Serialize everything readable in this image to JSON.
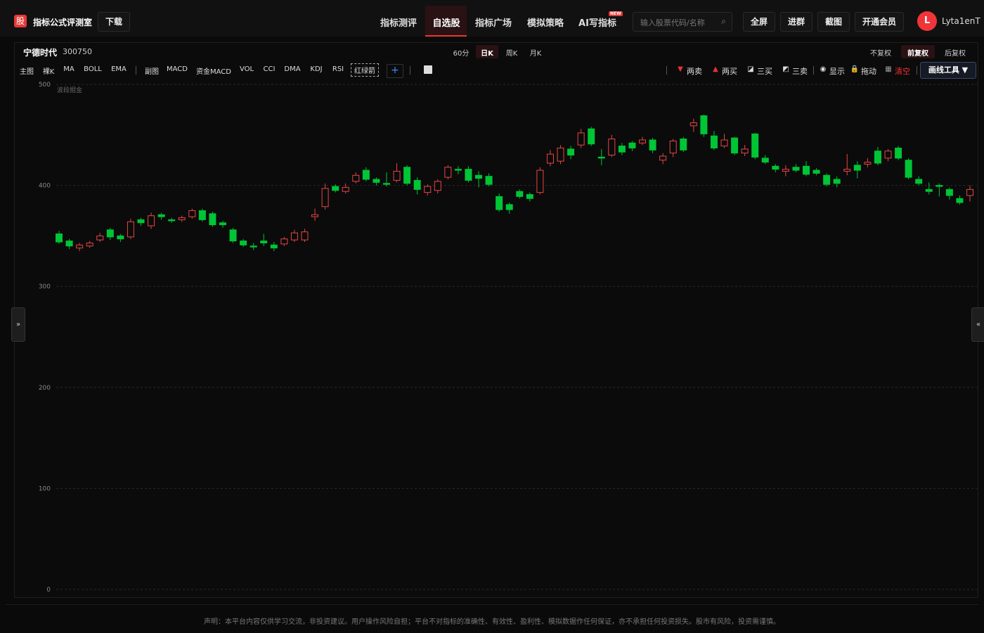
{
  "header": {
    "logo": "股",
    "app_name": "指标公式评测室",
    "download": "下载",
    "nav": [
      "指标测评",
      "自选股",
      "指标广场",
      "模拟策略",
      "AI写指标"
    ],
    "nav_badge": "NEW",
    "search_placeholder": "输入股票代码/名称",
    "buttons": [
      "全屏",
      "进群",
      "截图",
      "开通会员"
    ],
    "avatar": "L",
    "username": "Lyta1enT"
  },
  "stock": {
    "name": "宁德时代",
    "code": "300750",
    "periods": [
      "60分",
      "日K",
      "周K",
      "月K"
    ],
    "adjust": [
      "不复权",
      "前复权",
      "后复权"
    ]
  },
  "toolbar": {
    "indicators": [
      "主图",
      "裸K",
      "MA",
      "BOLL",
      "EMA",
      "副图",
      "MACD",
      "资金MACD",
      "VOL",
      "CCI",
      "DMA",
      "KDJ",
      "RSI",
      "红绿箭"
    ],
    "add": "+",
    "signals": [
      "两卖",
      "两买",
      "三买",
      "三卖",
      "显示",
      "拖动",
      "清空"
    ],
    "draw_tools": "画线工具 ▼"
  },
  "side": {
    "open": "»",
    "close": "«"
  },
  "chart_data": {
    "type": "candlestick",
    "label": "波段掘金",
    "open": [
      352,
      345,
      338,
      340,
      346,
      356,
      350,
      349,
      366,
      360,
      371,
      366,
      366,
      369,
      375,
      372,
      363,
      356,
      345,
      340,
      345,
      341,
      342,
      346,
      346,
      369,
      379,
      399,
      394,
      404,
      415,
      406,
      402,
      405,
      418,
      405,
      393,
      395,
      408,
      416,
      416,
      410,
      409,
      389,
      381,
      394,
      391,
      393,
      422,
      424,
      436,
      440,
      456,
      428,
      430,
      439,
      442,
      442,
      445,
      425,
      432,
      446,
      459,
      469,
      449,
      439,
      447,
      432,
      451,
      427,
      419,
      414,
      418,
      419,
      415,
      410,
      406,
      414,
      420,
      421,
      434,
      427,
      437,
      425,
      406,
      396,
      400,
      396,
      387,
      390
    ],
    "high": [
      355,
      347,
      343,
      345,
      353,
      358,
      352,
      367,
      368,
      373,
      373,
      368,
      370,
      377,
      377,
      374,
      365,
      358,
      347,
      343,
      352,
      344,
      349,
      356,
      357,
      377,
      402,
      401,
      402,
      413,
      418,
      408,
      413,
      422,
      420,
      408,
      401,
      406,
      420,
      419,
      419,
      414,
      412,
      392,
      383,
      396,
      393,
      418,
      435,
      440,
      439,
      456,
      458,
      436,
      450,
      442,
      444,
      448,
      447,
      432,
      446,
      448,
      466,
      470,
      454,
      451,
      448,
      440,
      452,
      430,
      421,
      420,
      421,
      424,
      417,
      412,
      409,
      431,
      424,
      427,
      438,
      436,
      439,
      427,
      409,
      403,
      402,
      398,
      390,
      400
    ],
    "low": [
      342,
      337,
      335,
      338,
      344,
      346,
      344,
      347,
      360,
      357,
      366,
      363,
      364,
      367,
      364,
      359,
      358,
      343,
      339,
      336,
      340,
      335,
      340,
      344,
      344,
      365,
      376,
      393,
      392,
      402,
      404,
      400,
      399,
      403,
      400,
      391,
      390,
      392,
      406,
      411,
      403,
      398,
      399,
      374,
      372,
      387,
      384,
      391,
      419,
      421,
      426,
      437,
      439,
      420,
      428,
      430,
      434,
      440,
      432,
      421,
      428,
      433,
      453,
      448,
      435,
      437,
      430,
      429,
      426,
      421,
      413,
      409,
      413,
      409,
      410,
      399,
      398,
      410,
      407,
      418,
      420,
      424,
      425,
      406,
      400,
      391,
      389,
      386,
      381,
      384
    ],
    "close": [
      344,
      340,
      341,
      343,
      350,
      349,
      347,
      364,
      363,
      370,
      369,
      365,
      368,
      375,
      366,
      361,
      361,
      345,
      341,
      339,
      343,
      338,
      347,
      353,
      354,
      371,
      397,
      395,
      398,
      410,
      406,
      403,
      401,
      414,
      402,
      396,
      399,
      404,
      418,
      415,
      405,
      407,
      401,
      376,
      376,
      389,
      387,
      415,
      431,
      437,
      430,
      452,
      441,
      427,
      446,
      433,
      437,
      445,
      435,
      429,
      444,
      435,
      462,
      451,
      437,
      445,
      432,
      436,
      428,
      423,
      416,
      416,
      415,
      411,
      412,
      401,
      402,
      416,
      415,
      423,
      422,
      434,
      427,
      408,
      402,
      394,
      399,
      390,
      383,
      396
    ],
    "ylim": [
      0,
      500
    ],
    "yticks": [
      0,
      100,
      200,
      300,
      400,
      500
    ],
    "up_color": "#e84545",
    "down_color": "#00c535",
    "grid": true
  },
  "footer": {
    "disclaimer": "声明：本平台内容仅供学习交流，非投资建议。用户操作风险自担；平台不对指标的准确性、有效性、盈利性、模拟数据作任何保证，亦不承担任何投资损失。股市有风险，投资需谨慎。"
  }
}
